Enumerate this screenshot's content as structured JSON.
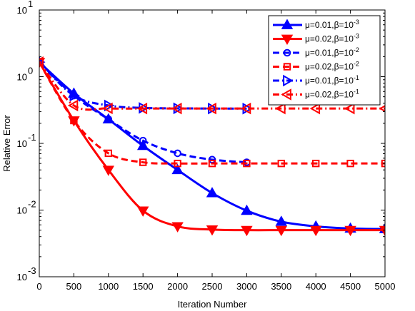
{
  "chart_data": {
    "type": "line",
    "title": "",
    "xlabel": "Iteration Number",
    "ylabel": "Relative Error",
    "xlim": [
      0,
      5000
    ],
    "ylim": [
      0.001,
      10
    ],
    "yscale": "log",
    "grid": false,
    "legend_position": "top-right",
    "x_ticks": [
      0,
      500,
      1000,
      1500,
      2000,
      2500,
      3000,
      3500,
      4000,
      4500,
      5000
    ],
    "x_tick_labels": [
      "0",
      "500",
      "1000",
      "1500",
      "2000",
      "2500",
      "3000",
      "3500",
      "4000",
      "4500",
      "5000"
    ],
    "y_ticks": [
      0.001,
      0.01,
      0.1,
      1,
      10
    ],
    "y_tick_labels": [
      {
        "base": "10",
        "exp": "-3"
      },
      {
        "base": "10",
        "exp": "-2"
      },
      {
        "base": "10",
        "exp": "-1"
      },
      {
        "base": "10",
        "exp": "0"
      },
      {
        "base": "10",
        "exp": "1"
      }
    ],
    "series": [
      {
        "name": {
          "prefix": "μ=0.01,β=",
          "base": "10",
          "exp": "-3"
        },
        "color": "#0000ff",
        "dash": "solid",
        "marker": "triangle-up",
        "filled": true,
        "x": [
          0,
          500,
          1000,
          1500,
          2000,
          2500,
          3000,
          3500,
          4000,
          4500,
          5000
        ],
        "y": [
          1.65,
          0.56,
          0.23,
          0.092,
          0.04,
          0.018,
          0.0098,
          0.0067,
          0.0057,
          0.0053,
          0.0052
        ]
      },
      {
        "name": {
          "prefix": "μ=0.02,β=",
          "base": "10",
          "exp": "-3"
        },
        "color": "#ff0000",
        "dash": "solid",
        "marker": "triangle-down",
        "filled": true,
        "x": [
          0,
          500,
          1000,
          1500,
          2000,
          2500,
          3000,
          3500,
          4000,
          4500,
          5000
        ],
        "y": [
          1.65,
          0.22,
          0.04,
          0.0098,
          0.0057,
          0.0051,
          0.005,
          0.005,
          0.005,
          0.005,
          0.005
        ]
      },
      {
        "name": {
          "prefix": "μ=0.01,β=",
          "base": "10",
          "exp": "-2"
        },
        "color": "#0000ff",
        "dash": "dashed",
        "marker": "circle",
        "filled": false,
        "x": [
          0,
          500,
          1000,
          1500,
          2000,
          2500,
          3000
        ],
        "y": [
          1.65,
          0.52,
          0.23,
          0.11,
          0.071,
          0.057,
          0.052
        ]
      },
      {
        "name": {
          "prefix": "μ=0.02,β=",
          "base": "10",
          "exp": "-2"
        },
        "color": "#ff0000",
        "dash": "dashed",
        "marker": "square",
        "filled": false,
        "x": [
          0,
          500,
          1000,
          1500,
          2000,
          2500,
          3000,
          3500,
          4000,
          4500,
          5000
        ],
        "y": [
          1.65,
          0.22,
          0.071,
          0.052,
          0.05,
          0.05,
          0.05,
          0.05,
          0.05,
          0.05,
          0.05
        ]
      },
      {
        "name": {
          "prefix": "μ=0.01,β=",
          "base": "10",
          "exp": "-1"
        },
        "color": "#0000ff",
        "dash": "dashdot",
        "marker": "triangle-right",
        "filled": false,
        "x": [
          0,
          500,
          1000,
          1500,
          2000,
          2500,
          3000
        ],
        "y": [
          1.65,
          0.52,
          0.37,
          0.34,
          0.335,
          0.333,
          0.332
        ]
      },
      {
        "name": {
          "prefix": "μ=0.02,β=",
          "base": "10",
          "exp": "-1"
        },
        "color": "#ff0000",
        "dash": "dashdot",
        "marker": "triangle-left",
        "filled": false,
        "x": [
          0,
          500,
          1000,
          1500,
          2000,
          2500,
          3000,
          3500,
          4000,
          4500,
          5000
        ],
        "y": [
          1.65,
          0.37,
          0.335,
          0.333,
          0.333,
          0.333,
          0.333,
          0.333,
          0.333,
          0.333,
          0.333
        ]
      }
    ]
  }
}
